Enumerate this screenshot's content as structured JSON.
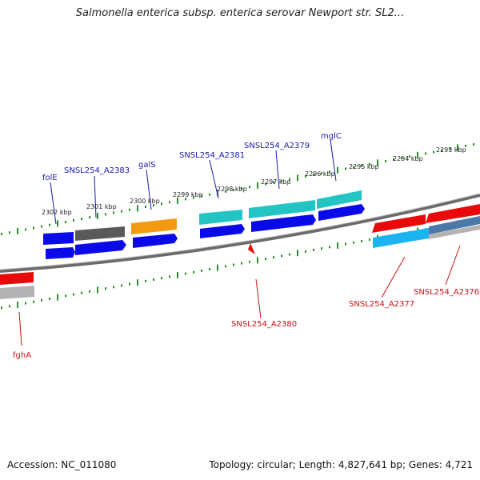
{
  "title": "Salmonella enterica subsp. enterica serovar Newport str. SL2...",
  "accession_text": "Accession: NC_011080",
  "topology_text": "Topology: circular; Length: 4,827,641 bp; Genes: 4,721",
  "colors": {
    "top_label": "#1a1aaa",
    "bottom_label": "#cc1111",
    "tick": "#2e8b2e",
    "backbone": "#6b6b6b",
    "blue": "#0a0ae8",
    "dark_gray": "#5a5a5a",
    "orange": "#f29a12",
    "teal": "#22c4c4",
    "red": "#e80a0a",
    "light_blue": "#1cb4f0",
    "light_gray": "#b3b3b3",
    "steel": "#4a78a8"
  },
  "kbp_labels": [
    "2302 kbp",
    "2301 kbp",
    "2300 kbp",
    "2299 kbp",
    "2298 kbp",
    "2297 kbp",
    "2296 kbp",
    "2295 kbp",
    "2294 kbp",
    "2293 kbp"
  ],
  "top_genes": [
    "folE",
    "SNSL254_A2383",
    "galS",
    "SNSL254_A2381",
    "SNSL254_A2379",
    "mglC"
  ],
  "bottom_genes": [
    "fghA",
    "SNSL254_A2380",
    "SNSL254_A2377",
    "SNSL254_A2376"
  ]
}
